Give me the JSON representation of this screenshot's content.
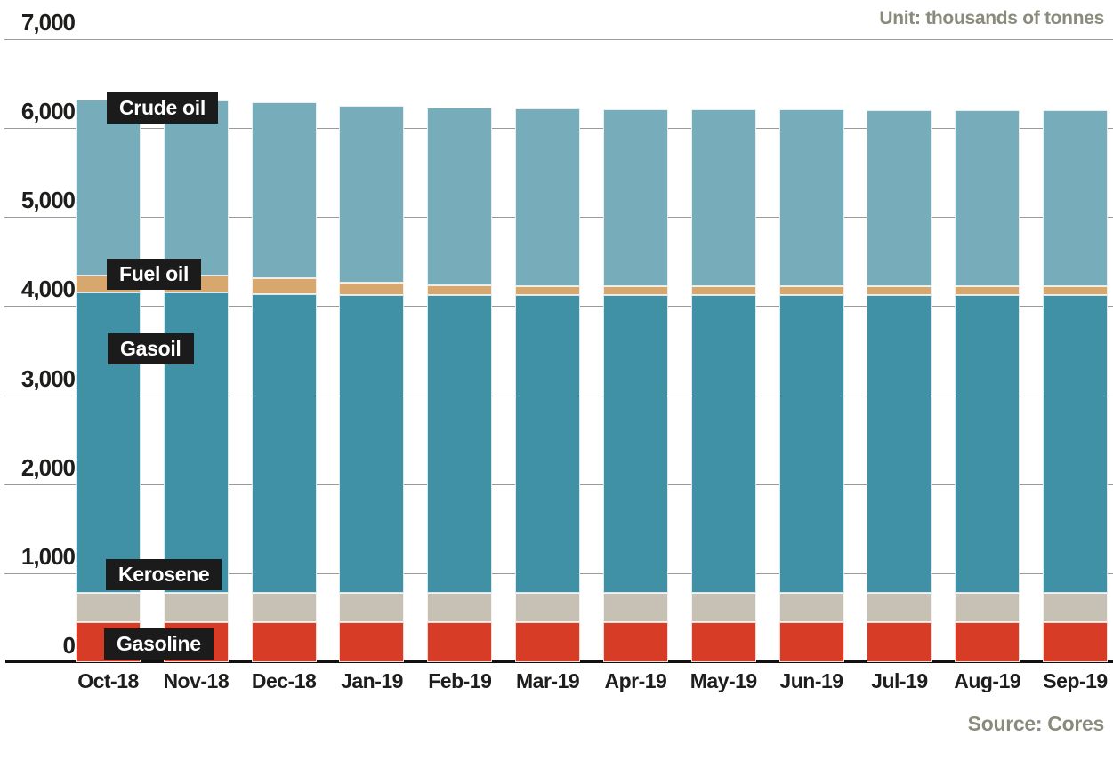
{
  "chart_data": {
    "type": "bar",
    "stacked": true,
    "title": "",
    "unit_label": "Unit: thousands of tonnes",
    "source_label": "Source: Cores",
    "categories": [
      "Oct-18",
      "Nov-18",
      "Dec-18",
      "Jan-19",
      "Feb-19",
      "Mar-19",
      "Apr-19",
      "May-19",
      "Jun-19",
      "Jul-19",
      "Aug-19",
      "Sep-19"
    ],
    "series": [
      {
        "name": "Gasoline",
        "color": "#d63c26",
        "values": [
          445,
          445,
          445,
          445,
          445,
          445,
          445,
          445,
          445,
          445,
          445,
          445
        ]
      },
      {
        "name": "Kerosene",
        "color": "#c7c0b4",
        "values": [
          330,
          330,
          330,
          330,
          330,
          330,
          330,
          330,
          330,
          330,
          330,
          330
        ]
      },
      {
        "name": "Gasoil",
        "color": "#4191a6",
        "values": [
          3375,
          3375,
          3360,
          3350,
          3350,
          3350,
          3350,
          3350,
          3350,
          3350,
          3350,
          3350
        ]
      },
      {
        "name": "Fuel oil",
        "color": "#d7a76e",
        "values": [
          195,
          190,
          180,
          140,
          110,
          100,
          100,
          95,
          95,
          95,
          95,
          95
        ]
      },
      {
        "name": "Crude oil",
        "color": "#77adba",
        "values": [
          1975,
          1975,
          1980,
          1990,
          2000,
          1995,
          1985,
          1990,
          1990,
          1985,
          1985,
          1985
        ]
      }
    ],
    "totals": [
      6320,
      6315,
      6295,
      6255,
      6235,
      6220,
      6210,
      6210,
      6210,
      6205,
      6205,
      6205
    ],
    "ylim": [
      0,
      7000
    ],
    "ytick_interval": 1000,
    "ytick_labels": [
      "0",
      "1,000",
      "2,000",
      "3,000",
      "4,000",
      "5,000",
      "6,000",
      "7,000"
    ],
    "grid": true,
    "legend_position": "inline-annotations",
    "annotations": [
      {
        "label": "Crude oil",
        "x": 120,
        "y": 104
      },
      {
        "label": "Fuel oil",
        "x": 120,
        "y": 291
      },
      {
        "label": "Gasoil",
        "x": 121,
        "y": 375
      },
      {
        "label": "Kerosene",
        "x": 119,
        "y": 629
      },
      {
        "label": "Gasoline",
        "x": 117,
        "y": 707
      }
    ],
    "colors": {
      "axis_text": "#1d1d1b",
      "muted_text": "#8b8b7d",
      "gridline": "#9b9a94",
      "annotation_bg": "#1b1b1b",
      "annotation_text": "#ffffff"
    }
  }
}
